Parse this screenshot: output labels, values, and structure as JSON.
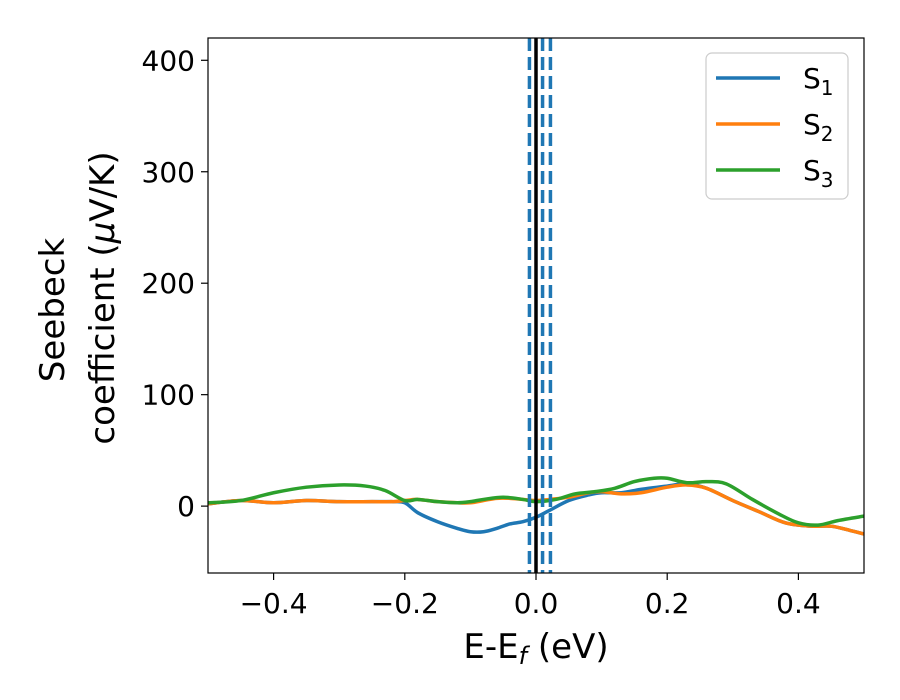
{
  "chart_data": {
    "type": "line",
    "title": "",
    "xlabel": {
      "main": "E-E",
      "sub": "f",
      "unit": " (eV)"
    },
    "ylabel": {
      "line1": "Seebeck",
      "line2_pre": "coefficient  (",
      "mu": "μ",
      "line2_post": "V/K)"
    },
    "xlim": [
      -0.5,
      0.5
    ],
    "ylim": [
      -60,
      420
    ],
    "xticks": [
      -0.4,
      -0.2,
      0.0,
      0.2,
      0.4
    ],
    "xtick_labels": [
      "−0.4",
      "−0.2",
      "0.0",
      "0.2",
      "0.4"
    ],
    "yticks": [
      0,
      100,
      200,
      300,
      400
    ],
    "ytick_labels": [
      "0",
      "100",
      "200",
      "300",
      "400"
    ],
    "grid": false,
    "legend_position": "top-right",
    "vlines": [
      {
        "x": 0.0,
        "color": "#000000",
        "style": "solid"
      },
      {
        "x": -0.01,
        "color": "#1f77b4",
        "style": "dashed"
      },
      {
        "x": 0.01,
        "color": "#1f77b4",
        "style": "dashed"
      },
      {
        "x": 0.022,
        "color": "#1f77b4",
        "style": "dashed"
      }
    ],
    "series": [
      {
        "name": "S",
        "sub": "1",
        "color": "#1f77b4",
        "x": [
          -0.5,
          -0.45,
          -0.4,
          -0.35,
          -0.3,
          -0.25,
          -0.22,
          -0.2,
          -0.18,
          -0.15,
          -0.12,
          -0.1,
          -0.08,
          -0.06,
          -0.04,
          -0.02,
          0.0,
          0.02,
          0.05,
          0.08,
          0.1,
          0.13,
          0.16,
          0.2,
          0.23,
          0.26,
          0.3,
          0.34,
          0.38,
          0.42,
          0.45,
          0.48,
          0.5
        ],
        "y": [
          2,
          5,
          3,
          5,
          4,
          4,
          4,
          3,
          -6,
          -14,
          -20,
          -23,
          -23,
          -20,
          -16,
          -14,
          -10,
          -4,
          5,
          10,
          12,
          12,
          15,
          18,
          20,
          16,
          5,
          -5,
          -15,
          -18,
          -18,
          -22,
          -25
        ]
      },
      {
        "name": "S",
        "sub": "2",
        "color": "#ff7f0e",
        "x": [
          -0.5,
          -0.45,
          -0.4,
          -0.35,
          -0.3,
          -0.25,
          -0.22,
          -0.2,
          -0.18,
          -0.15,
          -0.12,
          -0.1,
          -0.08,
          -0.06,
          -0.04,
          -0.02,
          0.0,
          0.02,
          0.05,
          0.08,
          0.1,
          0.13,
          0.16,
          0.2,
          0.23,
          0.26,
          0.3,
          0.34,
          0.38,
          0.42,
          0.45,
          0.48,
          0.5
        ],
        "y": [
          2,
          5,
          3,
          5,
          4,
          4,
          4,
          5,
          6,
          4,
          3,
          3,
          5,
          7,
          7,
          6,
          5,
          6,
          8,
          12,
          13,
          11,
          12,
          17,
          19,
          16,
          5,
          -5,
          -15,
          -18,
          -18,
          -22,
          -25
        ]
      },
      {
        "name": "S",
        "sub": "3",
        "color": "#2ca02c",
        "x": [
          -0.5,
          -0.45,
          -0.4,
          -0.35,
          -0.3,
          -0.26,
          -0.23,
          -0.2,
          -0.18,
          -0.15,
          -0.12,
          -0.1,
          -0.08,
          -0.05,
          -0.02,
          0.0,
          0.03,
          0.06,
          0.09,
          0.12,
          0.15,
          0.18,
          0.2,
          0.23,
          0.26,
          0.29,
          0.33,
          0.37,
          0.4,
          0.43,
          0.46,
          0.5
        ],
        "y": [
          3,
          5,
          12,
          17,
          19,
          18,
          14,
          5,
          6,
          4,
          3,
          4,
          6,
          8,
          6,
          4,
          6,
          11,
          13,
          16,
          22,
          25,
          25,
          21,
          22,
          20,
          6,
          -7,
          -15,
          -17,
          -13,
          -9
        ]
      }
    ]
  }
}
